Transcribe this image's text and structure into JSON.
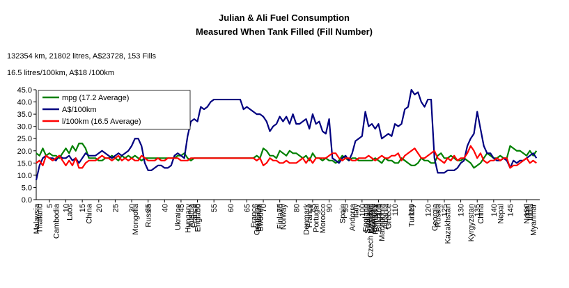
{
  "chart_data": {
    "type": "line",
    "title": "Julian & Ali Fuel Consumption",
    "subtitle": "Measured When Tank Filled (Fill Number)",
    "annotations": [
      "132354 km, 21802 litres, A$23728, 153 Fills",
      "16.5 litres/100km, A$18 /100km"
    ],
    "x": [
      1,
      2,
      3,
      4,
      5,
      6,
      7,
      8,
      9,
      10,
      11,
      12,
      13,
      14,
      15,
      16,
      17,
      18,
      19,
      20,
      21,
      22,
      23,
      24,
      25,
      26,
      27,
      28,
      29,
      30,
      31,
      32,
      33,
      34,
      35,
      36,
      37,
      38,
      39,
      40,
      41,
      42,
      43,
      44,
      45,
      46,
      47,
      48,
      49,
      50,
      51,
      52,
      53,
      54,
      55,
      56,
      57,
      58,
      59,
      60,
      61,
      62,
      63,
      64,
      65,
      66,
      67,
      68,
      69,
      70,
      71,
      72,
      73,
      74,
      75,
      76,
      77,
      78,
      79,
      80,
      81,
      82,
      83,
      84,
      85,
      86,
      87,
      88,
      89,
      90,
      91,
      92,
      93,
      94,
      95,
      96,
      97,
      98,
      99,
      100,
      101,
      102,
      103,
      104,
      105,
      106,
      107,
      108,
      109,
      110,
      111,
      112,
      113,
      114,
      115,
      116,
      117,
      118,
      119,
      120,
      121,
      122,
      123,
      124,
      125,
      126,
      127,
      128,
      129,
      130,
      131,
      132,
      133,
      134,
      135,
      136,
      137,
      138,
      139,
      140,
      141,
      142,
      143,
      144,
      145,
      146,
      147,
      148,
      149,
      150,
      151,
      152,
      153
    ],
    "xlim": [
      1,
      154
    ],
    "xticks": [
      5,
      10,
      15,
      20,
      25,
      30,
      35,
      40,
      45,
      50,
      55,
      60,
      65,
      70,
      75,
      80,
      85,
      90,
      95,
      100,
      105,
      110,
      115,
      120,
      125,
      130,
      135,
      140,
      145,
      150
    ],
    "ylim": [
      0,
      45
    ],
    "yticks": [
      {
        "value": 0,
        "label": "0.0"
      },
      {
        "value": 5,
        "label": "5.0"
      },
      {
        "value": 10,
        "label": "10.0"
      },
      {
        "value": 15,
        "label": "15.0"
      },
      {
        "value": 20,
        "label": "20.0"
      },
      {
        "value": 25,
        "label": "25.0"
      },
      {
        "value": 30,
        "label": "30.0"
      },
      {
        "value": 35,
        "label": "35.0"
      },
      {
        "value": 40,
        "label": "40.0"
      },
      {
        "value": 45,
        "label": "45.0"
      }
    ],
    "grid": false,
    "legend": "upper left",
    "country_labels": [
      {
        "x": 1,
        "label": "Malaysia"
      },
      {
        "x": 2,
        "label": "Thailand"
      },
      {
        "x": 7,
        "label": "Cambodia"
      },
      {
        "x": 11,
        "label": "Laos"
      },
      {
        "x": 17,
        "label": "China"
      },
      {
        "x": 31,
        "label": "Mongolia"
      },
      {
        "x": 35,
        "label": "Russia"
      },
      {
        "x": 44,
        "label": "Ukraine"
      },
      {
        "x": 47,
        "label": "Hungary"
      },
      {
        "x": 48,
        "label": "Austria"
      },
      {
        "x": 49,
        "label": "France"
      },
      {
        "x": 50,
        "label": "England"
      },
      {
        "x": 67,
        "label": "France"
      },
      {
        "x": 68,
        "label": "Germany"
      },
      {
        "x": 68.5,
        "label": "Belgium"
      },
      {
        "x": 69,
        "label": "Sweden"
      },
      {
        "x": 75,
        "label": "Finland"
      },
      {
        "x": 76,
        "label": "Norway"
      },
      {
        "x": 83,
        "label": "Denmark"
      },
      {
        "x": 84,
        "label": "France"
      },
      {
        "x": 86,
        "label": "Portugal"
      },
      {
        "x": 88,
        "label": "Morocco"
      },
      {
        "x": 94,
        "label": "Spain"
      },
      {
        "x": 97,
        "label": "Andorra"
      },
      {
        "x": 98,
        "label": "Italy"
      },
      {
        "x": 101,
        "label": "England"
      },
      {
        "x": 101.5,
        "label": "Scotland"
      },
      {
        "x": 102,
        "label": "Ireland"
      },
      {
        "x": 102.5,
        "label": "Czech Republic"
      },
      {
        "x": 103,
        "label": "Slovenia"
      },
      {
        "x": 103.5,
        "label": "Hungary"
      },
      {
        "x": 104,
        "label": "Romania"
      },
      {
        "x": 105,
        "label": "Bulgaria"
      },
      {
        "x": 106,
        "label": "Macedonia"
      },
      {
        "x": 107,
        "label": "Albania"
      },
      {
        "x": 108,
        "label": "Greece"
      },
      {
        "x": 115,
        "label": "Turkey"
      },
      {
        "x": 122,
        "label": "Georgia"
      },
      {
        "x": 123,
        "label": "Russia"
      },
      {
        "x": 126,
        "label": "Kazakhstan"
      },
      {
        "x": 133,
        "label": "Kyrgyzstan"
      },
      {
        "x": 136,
        "label": "China"
      },
      {
        "x": 142,
        "label": "Nepal"
      },
      {
        "x": 150,
        "label": "Nepal"
      },
      {
        "x": 151,
        "label": "India"
      },
      {
        "x": 152,
        "label": "Myanmar"
      }
    ],
    "series": [
      {
        "name": "mpg (17.2 Average)",
        "color": "#008000",
        "values": [
          19,
          18,
          21,
          18,
          19,
          18,
          18,
          17,
          19,
          21,
          19,
          22,
          20,
          23,
          23,
          21,
          17,
          17,
          17,
          16,
          16,
          17,
          17,
          18,
          17,
          16,
          18,
          17,
          18,
          17,
          18,
          17,
          16,
          17,
          17,
          17,
          17,
          17,
          17,
          17,
          17,
          17,
          17,
          18,
          18,
          19,
          17,
          16,
          17,
          17,
          17,
          17,
          17,
          17,
          17,
          17,
          17,
          17,
          17,
          17,
          17,
          17,
          17,
          17,
          17,
          17,
          17,
          18,
          17,
          21,
          20,
          18,
          18,
          17,
          20,
          19,
          18,
          20,
          19,
          19,
          18,
          17,
          18,
          16,
          19,
          17,
          17,
          16,
          17,
          16,
          16,
          15,
          16,
          18,
          17,
          16,
          17,
          17,
          16,
          16,
          16,
          16,
          16,
          17,
          16,
          15,
          17,
          16,
          16,
          15,
          15,
          17,
          16,
          15,
          14,
          14,
          15,
          17,
          16,
          16,
          15,
          15,
          18,
          19,
          17,
          17,
          18,
          17,
          16,
          16,
          17,
          16,
          15,
          13,
          14,
          15,
          17,
          19,
          18,
          17,
          17,
          18,
          17,
          17,
          22,
          21,
          20,
          20,
          19,
          18,
          20,
          18,
          20
        ]
      },
      {
        "name": "A$/100km",
        "color": "#000080",
        "values": [
          8,
          14,
          17,
          18,
          17,
          17,
          16,
          18,
          17,
          17,
          18,
          16,
          17,
          15,
          17,
          19,
          18,
          18,
          18,
          19,
          20,
          19,
          18,
          17,
          18,
          19,
          18,
          19,
          20,
          22,
          25,
          25,
          22,
          15,
          12,
          12,
          13,
          14,
          14,
          13,
          13,
          14,
          18,
          19,
          18,
          17,
          26,
          32,
          33,
          32,
          38,
          37,
          38,
          40,
          41,
          41,
          41,
          41,
          41,
          41,
          41,
          41,
          41,
          37,
          38,
          37,
          36,
          35,
          35,
          34,
          32,
          28,
          30,
          31,
          34,
          32,
          34,
          31,
          35,
          31,
          31,
          32,
          33,
          29,
          35,
          31,
          32,
          28,
          27,
          33,
          17,
          16,
          15,
          17,
          18,
          16,
          19,
          24,
          25,
          26,
          36,
          30,
          31,
          29,
          31,
          25,
          26,
          27,
          26,
          31,
          30,
          31,
          37,
          38,
          45,
          43,
          44,
          40,
          38,
          41,
          41,
          17,
          11,
          11,
          11,
          12,
          12,
          12,
          13,
          15,
          16,
          22,
          25,
          27,
          36,
          29,
          22,
          19,
          19,
          17,
          16,
          16,
          17,
          16,
          13,
          16,
          15,
          16,
          16,
          17,
          18,
          19,
          17
        ]
      },
      {
        "name": "l/100km (16.5 Average)",
        "color": "#ff0000",
        "values": [
          15,
          16,
          14,
          18,
          17,
          16,
          17,
          18,
          16,
          14,
          16,
          14,
          17,
          13,
          13,
          15,
          16,
          16,
          16,
          17,
          18,
          17,
          17,
          16,
          17,
          18,
          16,
          17,
          16,
          17,
          16,
          16,
          18,
          17,
          16,
          16,
          16,
          17,
          16,
          16,
          17,
          17,
          17,
          17,
          16,
          16,
          16,
          17,
          17,
          17,
          17,
          17,
          17,
          17,
          17,
          17,
          17,
          17,
          17,
          17,
          17,
          17,
          17,
          17,
          17,
          17,
          17,
          16,
          17,
          14,
          15,
          17,
          16,
          16,
          15,
          15,
          16,
          15,
          15,
          15,
          16,
          17,
          15,
          17,
          15,
          17,
          17,
          17,
          17,
          18,
          19,
          19,
          17,
          16,
          17,
          17,
          16,
          16,
          17,
          17,
          17,
          18,
          17,
          16,
          17,
          18,
          17,
          17,
          18,
          18,
          19,
          16,
          18,
          19,
          20,
          21,
          19,
          17,
          17,
          18,
          19,
          20,
          17,
          16,
          15,
          17,
          16,
          18,
          16,
          17,
          17,
          19,
          22,
          20,
          17,
          19,
          16,
          15,
          16,
          16,
          17,
          16,
          17,
          17,
          13,
          14,
          14,
          15,
          16,
          17,
          15,
          16,
          15
        ]
      }
    ]
  }
}
